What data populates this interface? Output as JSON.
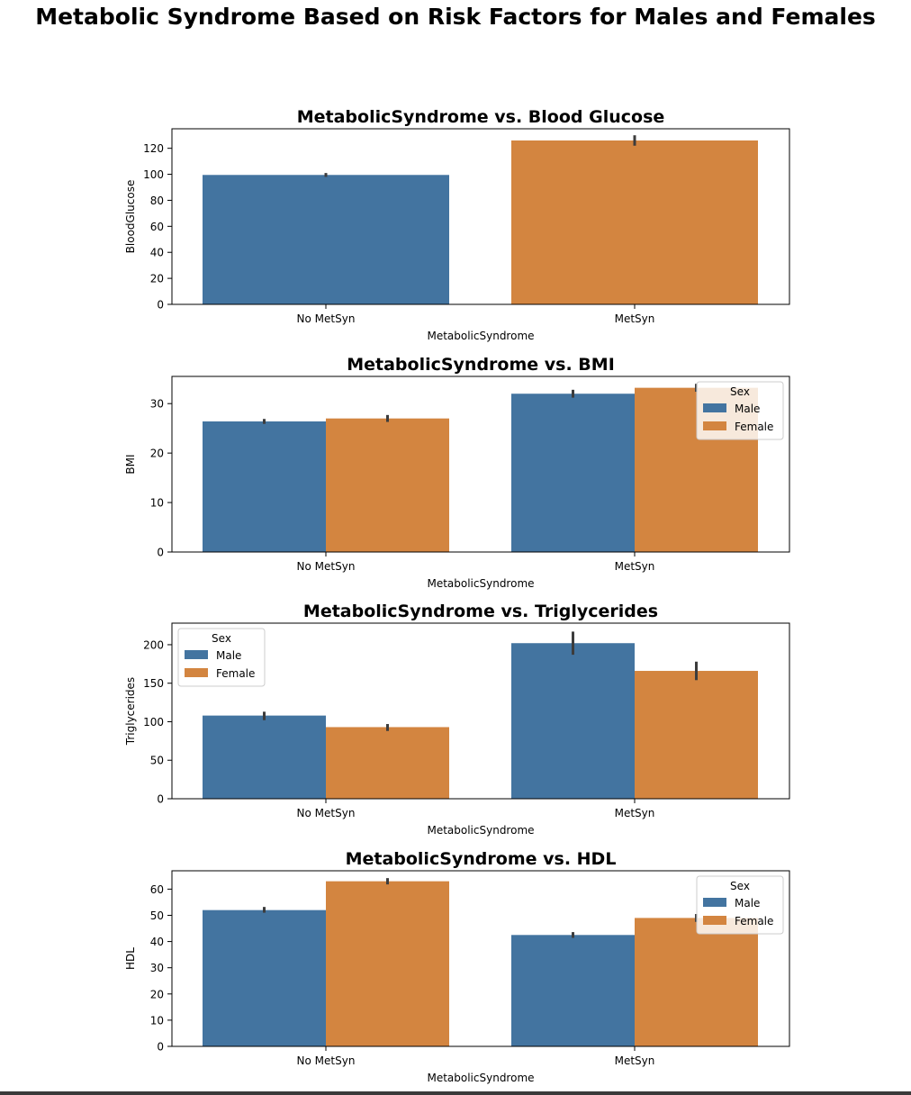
{
  "figure": {
    "suptitle": "Metabolic Syndrome Based on Risk Factors for Males and Females"
  },
  "colors": {
    "male": "#4374a0",
    "female": "#d38540",
    "errorbar": "#3c3c3c",
    "legend_bg": "#ffffff"
  },
  "chart_data": [
    {
      "type": "bar",
      "title": "MetabolicSyndrome vs. Blood Glucose",
      "xlabel": "MetabolicSyndrome",
      "ylabel": "BloodGlucose",
      "categories": [
        "No MetSyn",
        "MetSyn"
      ],
      "ylim": [
        0,
        135
      ],
      "yticks": [
        0,
        20,
        40,
        60,
        80,
        100,
        120
      ],
      "legend": null,
      "bars": [
        {
          "category": "No MetSyn",
          "value": 99.5,
          "err": [
            98,
            101
          ],
          "color": "male"
        },
        {
          "category": "MetSyn",
          "value": 126,
          "err": [
            122,
            130
          ],
          "color": "female"
        }
      ]
    },
    {
      "type": "bar",
      "title": "MetabolicSyndrome vs. BMI",
      "xlabel": "MetabolicSyndrome",
      "ylabel": "BMI",
      "categories": [
        "No MetSyn",
        "MetSyn"
      ],
      "ylim": [
        0,
        35.5
      ],
      "yticks": [
        0,
        10,
        20,
        30
      ],
      "legend": {
        "title": "Sex",
        "placement": "upper right",
        "entries": [
          "Male",
          "Female"
        ]
      },
      "series": [
        {
          "name": "Male",
          "color": "male",
          "values": [
            26.4,
            32.0
          ],
          "err": [
            [
              25.9,
              26.9
            ],
            [
              31.2,
              32.8
            ]
          ]
        },
        {
          "name": "Female",
          "color": "female",
          "values": [
            27.0,
            33.2
          ],
          "err": [
            [
              26.3,
              27.7
            ],
            [
              32.4,
              34.0
            ]
          ]
        }
      ]
    },
    {
      "type": "bar",
      "title": "MetabolicSyndrome vs. Triglycerides",
      "xlabel": "MetabolicSyndrome",
      "ylabel": "Triglycerides",
      "categories": [
        "No MetSyn",
        "MetSyn"
      ],
      "ylim": [
        0,
        228
      ],
      "yticks": [
        0,
        50,
        100,
        150,
        200
      ],
      "legend": {
        "title": "Sex",
        "placement": "upper left",
        "entries": [
          "Male",
          "Female"
        ]
      },
      "series": [
        {
          "name": "Male",
          "color": "male",
          "values": [
            108,
            202
          ],
          "err": [
            [
              102,
              113
            ],
            [
              187,
              217
            ]
          ]
        },
        {
          "name": "Female",
          "color": "female",
          "values": [
            93,
            166
          ],
          "err": [
            [
              88,
              97
            ],
            [
              154,
              178
            ]
          ]
        }
      ]
    },
    {
      "type": "bar",
      "title": "MetabolicSyndrome vs. HDL",
      "xlabel": "MetabolicSyndrome",
      "ylabel": "HDL",
      "categories": [
        "No MetSyn",
        "MetSyn"
      ],
      "ylim": [
        0,
        67
      ],
      "yticks": [
        0,
        10,
        20,
        30,
        40,
        50,
        60
      ],
      "legend": {
        "title": "Sex",
        "placement": "upper right",
        "entries": [
          "Male",
          "Female"
        ]
      },
      "series": [
        {
          "name": "Male",
          "color": "male",
          "values": [
            52,
            42.5
          ],
          "err": [
            [
              51,
              53.2
            ],
            [
              41.4,
              43.6
            ]
          ]
        },
        {
          "name": "Female",
          "color": "female",
          "values": [
            63,
            49
          ],
          "err": [
            [
              61.8,
              64.2
            ],
            [
              47.5,
              50.5
            ]
          ]
        }
      ]
    }
  ]
}
